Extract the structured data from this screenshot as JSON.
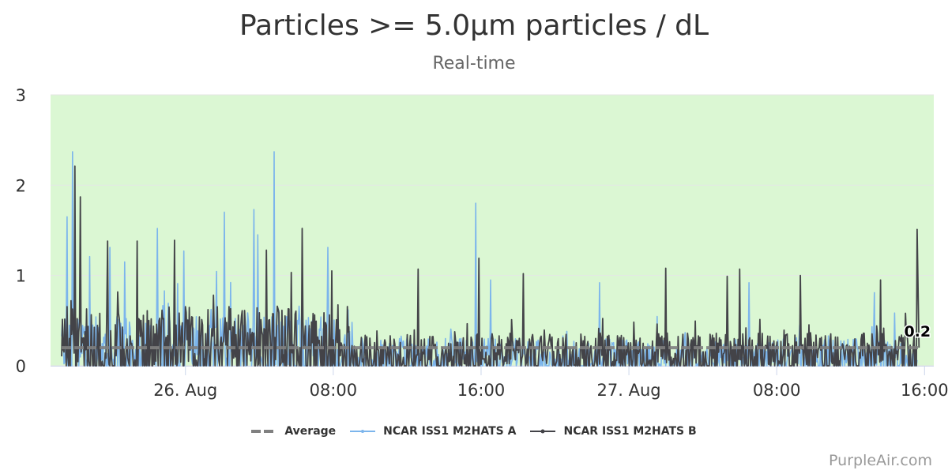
{
  "header": {
    "title": "Particles >= 5.0µm particles / dL",
    "subtitle": "Real-time"
  },
  "credit": "PurpleAir.com",
  "colors": {
    "plot_background": "#dbf7d3",
    "average": "#808080",
    "series_a": "#7cb5ec",
    "series_b": "#434348",
    "gridline": "#e6e6e6",
    "axis_label": "#333333"
  },
  "chart_data": {
    "type": "line",
    "title": "Particles >= 5.0µm particles / dL",
    "subtitle": "Real-time",
    "xlabel": "",
    "ylabel": "",
    "x_ticks": [
      "26. Aug",
      "08:00",
      "16:00",
      "27. Aug",
      "08:00",
      "16:00"
    ],
    "x_tick_hours": [
      0,
      8,
      16,
      24,
      32,
      40
    ],
    "xlim_hours": [
      -7.3,
      40.5
    ],
    "ylim": [
      0,
      3
    ],
    "y_ticks": [
      0,
      1,
      2,
      3
    ],
    "grid": true,
    "legend_position": "bottom-center",
    "series": [
      {
        "name": "Average",
        "style": "dashed",
        "value": 0.2
      },
      {
        "name": "NCAR ISS1 M2HATS A",
        "style": "line",
        "spikes": [
          [
            -6.4,
            1.65
          ],
          [
            -6.1,
            2.37
          ],
          [
            -5.2,
            1.21
          ],
          [
            -4.1,
            1.31
          ],
          [
            -3.3,
            1.15
          ],
          [
            -1.5,
            1.52
          ],
          [
            -0.1,
            1.27
          ],
          [
            2.1,
            1.7
          ],
          [
            3.7,
            1.73
          ],
          [
            3.9,
            1.45
          ],
          [
            4.8,
            2.37
          ],
          [
            7.7,
            1.31
          ],
          [
            9.0,
            0.48
          ],
          [
            15.7,
            1.8
          ],
          [
            16.5,
            0.95
          ],
          [
            22.4,
            0.92
          ],
          [
            30.5,
            0.92
          ],
          [
            37.3,
            0.81
          ]
        ],
        "baseline_level": 0.25
      },
      {
        "name": "NCAR ISS1 M2HATS B",
        "style": "line",
        "spikes": [
          [
            -6.0,
            2.21
          ],
          [
            -5.7,
            1.87
          ],
          [
            -4.2,
            1.38
          ],
          [
            -2.6,
            1.38
          ],
          [
            -0.6,
            1.39
          ],
          [
            4.4,
            1.28
          ],
          [
            6.3,
            1.52
          ],
          [
            7.9,
            1.05
          ],
          [
            12.6,
            1.07
          ],
          [
            15.9,
            1.19
          ],
          [
            18.3,
            1.02
          ],
          [
            26.0,
            1.08
          ],
          [
            29.3,
            0.99
          ],
          [
            30.0,
            1.07
          ],
          [
            33.3,
            1.0
          ],
          [
            37.6,
            0.95
          ],
          [
            39.6,
            1.51
          ]
        ],
        "baseline_level": 0.3,
        "last_value": 0.2,
        "last_value_label": "0.2"
      }
    ]
  }
}
